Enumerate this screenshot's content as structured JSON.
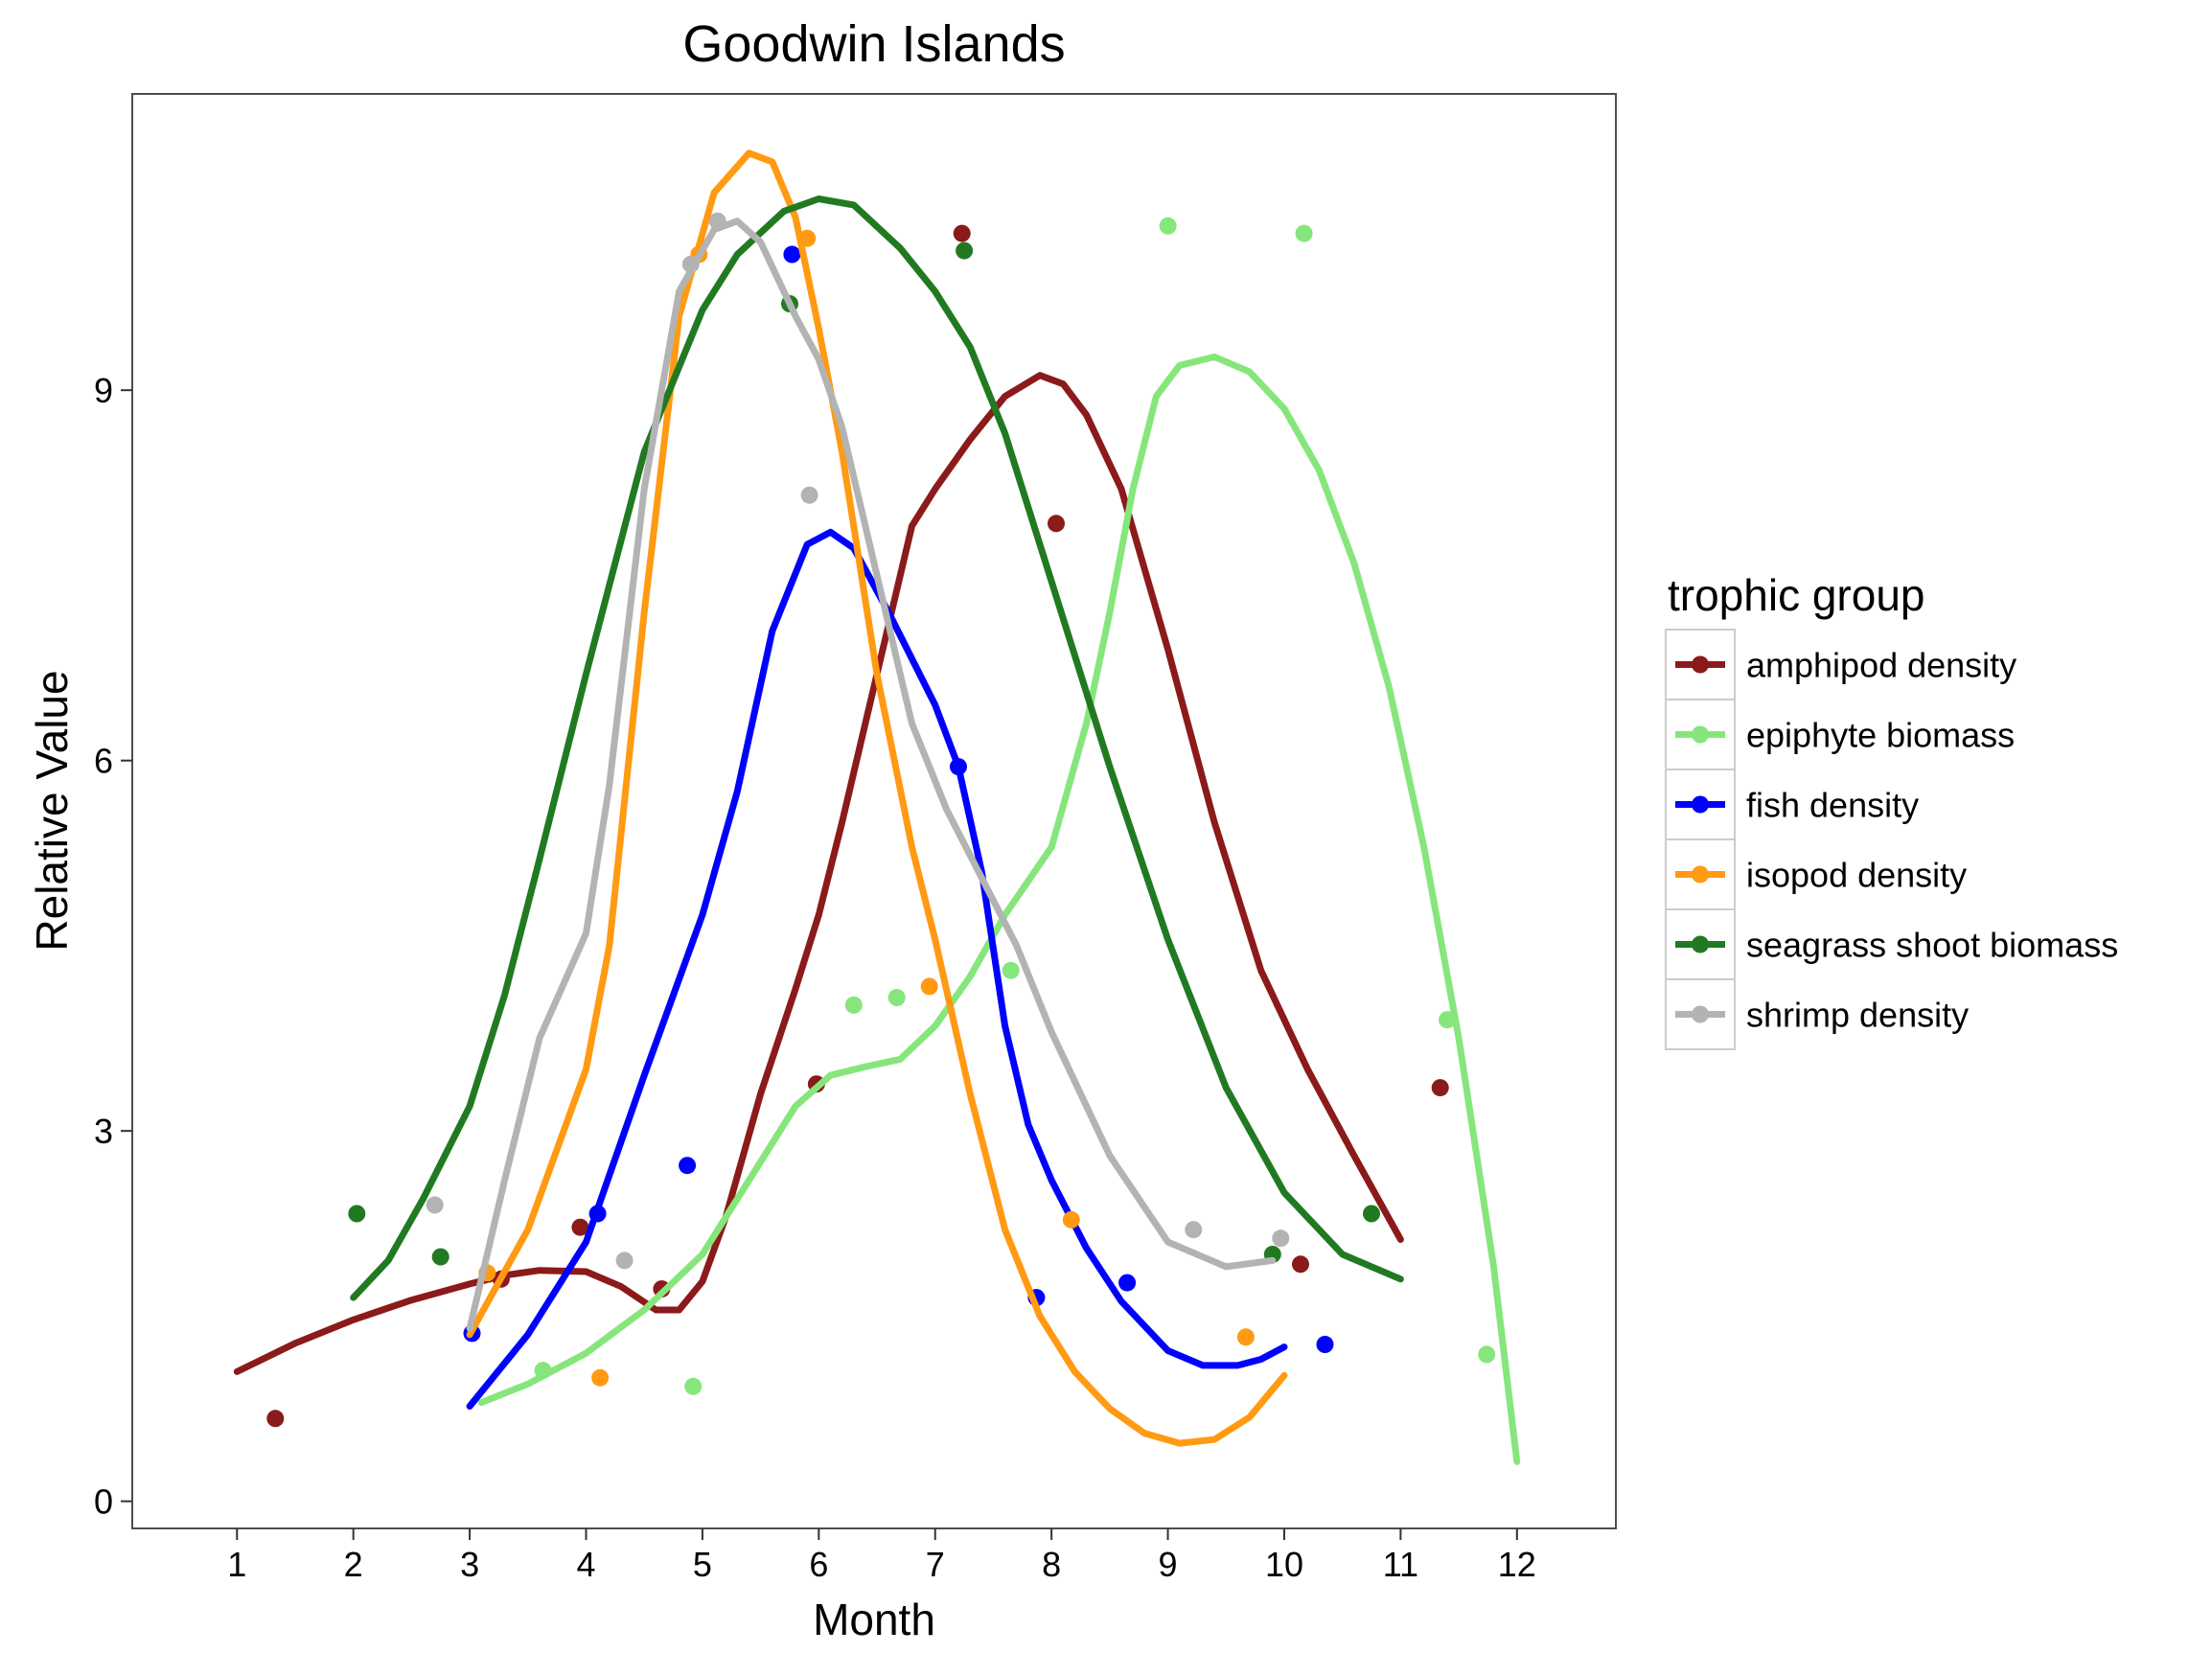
{
  "chart_data": {
    "type": "line",
    "title": "Goodwin Islands",
    "xlabel": "Month",
    "ylabel": "Relative Value",
    "xlim": [
      0.1,
      12.85
    ],
    "ylim": [
      -0.22,
      11.4
    ],
    "xticks": [
      1,
      2,
      3,
      4,
      5,
      6,
      7,
      8,
      9,
      10,
      11,
      12
    ],
    "yticks": [
      0,
      3,
      6,
      9
    ],
    "legend_title": "trophic group",
    "legend_position": "right",
    "grid": false,
    "series": [
      {
        "name": "amphipod density",
        "color": "#8b1a1a",
        "points": [
          [
            1.33,
            0.67
          ],
          [
            3.27,
            1.8
          ],
          [
            3.95,
            2.22
          ],
          [
            4.65,
            1.72
          ],
          [
            5.98,
            3.38
          ],
          [
            7.23,
            10.27
          ],
          [
            8.04,
            7.92
          ],
          [
            10.14,
            1.92
          ],
          [
            11.34,
            3.35
          ]
        ],
        "curve": [
          [
            1.0,
            1.05
          ],
          [
            1.5,
            1.28
          ],
          [
            2.0,
            1.47
          ],
          [
            2.5,
            1.63
          ],
          [
            3.0,
            1.76
          ],
          [
            3.3,
            1.83
          ],
          [
            3.6,
            1.87
          ],
          [
            4.0,
            1.86
          ],
          [
            4.3,
            1.74
          ],
          [
            4.6,
            1.55
          ],
          [
            4.8,
            1.55
          ],
          [
            5.0,
            1.78
          ],
          [
            5.2,
            2.3
          ],
          [
            5.5,
            3.3
          ],
          [
            5.8,
            4.15
          ],
          [
            6.0,
            4.75
          ],
          [
            6.2,
            5.5
          ],
          [
            6.5,
            6.7
          ],
          [
            6.8,
            7.9
          ],
          [
            7.0,
            8.2
          ],
          [
            7.3,
            8.6
          ],
          [
            7.6,
            8.95
          ],
          [
            7.9,
            9.12
          ],
          [
            8.1,
            9.05
          ],
          [
            8.3,
            8.8
          ],
          [
            8.6,
            8.2
          ],
          [
            9.0,
            6.9
          ],
          [
            9.4,
            5.5
          ],
          [
            9.8,
            4.3
          ],
          [
            10.2,
            3.5
          ],
          [
            10.6,
            2.8
          ],
          [
            11.0,
            2.12
          ]
        ]
      },
      {
        "name": "epiphyte biomass",
        "color": "#86e67c",
        "points": [
          [
            3.63,
            1.06
          ],
          [
            4.92,
            0.93
          ],
          [
            6.3,
            4.02
          ],
          [
            6.67,
            4.08
          ],
          [
            7.65,
            4.3
          ],
          [
            9.0,
            10.33
          ],
          [
            10.17,
            10.27
          ],
          [
            11.4,
            3.9
          ],
          [
            11.74,
            1.19
          ]
        ],
        "curve": [
          [
            3.1,
            0.8
          ],
          [
            3.5,
            0.95
          ],
          [
            4.0,
            1.2
          ],
          [
            4.5,
            1.55
          ],
          [
            5.0,
            2.0
          ],
          [
            5.4,
            2.6
          ],
          [
            5.8,
            3.2
          ],
          [
            6.1,
            3.45
          ],
          [
            6.4,
            3.52
          ],
          [
            6.7,
            3.58
          ],
          [
            7.0,
            3.85
          ],
          [
            7.3,
            4.25
          ],
          [
            7.6,
            4.75
          ],
          [
            8.0,
            5.3
          ],
          [
            8.3,
            6.3
          ],
          [
            8.5,
            7.2
          ],
          [
            8.7,
            8.2
          ],
          [
            8.9,
            8.95
          ],
          [
            9.1,
            9.2
          ],
          [
            9.4,
            9.27
          ],
          [
            9.7,
            9.15
          ],
          [
            10.0,
            8.85
          ],
          [
            10.3,
            8.35
          ],
          [
            10.6,
            7.6
          ],
          [
            10.9,
            6.6
          ],
          [
            11.2,
            5.3
          ],
          [
            11.5,
            3.75
          ],
          [
            11.8,
            1.9
          ],
          [
            12.0,
            0.32
          ]
        ]
      },
      {
        "name": "fish density",
        "color": "#0000ff",
        "points": [
          [
            3.02,
            1.36
          ],
          [
            4.1,
            2.33
          ],
          [
            4.87,
            2.72
          ],
          [
            5.77,
            10.1
          ],
          [
            7.2,
            5.95
          ],
          [
            7.87,
            1.65
          ],
          [
            8.65,
            1.77
          ],
          [
            10.35,
            1.27
          ]
        ],
        "curve": [
          [
            3.0,
            0.77
          ],
          [
            3.5,
            1.35
          ],
          [
            4.0,
            2.1
          ],
          [
            4.5,
            3.45
          ],
          [
            5.0,
            4.75
          ],
          [
            5.3,
            5.75
          ],
          [
            5.6,
            7.05
          ],
          [
            5.9,
            7.75
          ],
          [
            6.1,
            7.85
          ],
          [
            6.3,
            7.72
          ],
          [
            6.6,
            7.2
          ],
          [
            7.0,
            6.45
          ],
          [
            7.2,
            5.95
          ],
          [
            7.4,
            5.1
          ],
          [
            7.6,
            3.85
          ],
          [
            7.8,
            3.05
          ],
          [
            8.0,
            2.6
          ],
          [
            8.3,
            2.05
          ],
          [
            8.6,
            1.62
          ],
          [
            9.0,
            1.22
          ],
          [
            9.3,
            1.1
          ],
          [
            9.6,
            1.1
          ],
          [
            9.8,
            1.15
          ],
          [
            10.0,
            1.25
          ]
        ]
      },
      {
        "name": "isopod density",
        "color": "#ff9a12",
        "points": [
          [
            3.15,
            1.85
          ],
          [
            4.12,
            1.0
          ],
          [
            4.97,
            10.1
          ],
          [
            5.9,
            10.23
          ],
          [
            6.95,
            4.17
          ],
          [
            8.17,
            2.28
          ],
          [
            9.67,
            1.33
          ]
        ],
        "curve": [
          [
            3.0,
            1.35
          ],
          [
            3.5,
            2.2
          ],
          [
            4.0,
            3.5
          ],
          [
            4.2,
            4.5
          ],
          [
            4.5,
            7.2
          ],
          [
            4.8,
            9.6
          ],
          [
            5.1,
            10.6
          ],
          [
            5.4,
            10.92
          ],
          [
            5.6,
            10.85
          ],
          [
            5.8,
            10.4
          ],
          [
            6.0,
            9.5
          ],
          [
            6.2,
            8.5
          ],
          [
            6.5,
            6.7
          ],
          [
            6.8,
            5.3
          ],
          [
            7.0,
            4.55
          ],
          [
            7.3,
            3.3
          ],
          [
            7.6,
            2.2
          ],
          [
            7.9,
            1.5
          ],
          [
            8.2,
            1.05
          ],
          [
            8.5,
            0.75
          ],
          [
            8.8,
            0.55
          ],
          [
            9.1,
            0.47
          ],
          [
            9.4,
            0.5
          ],
          [
            9.7,
            0.68
          ],
          [
            10.0,
            1.02
          ]
        ]
      },
      {
        "name": "seagrass shoot biomass",
        "color": "#217a21",
        "points": [
          [
            2.03,
            2.33
          ],
          [
            2.75,
            1.98
          ],
          [
            5.75,
            9.7
          ],
          [
            7.25,
            10.13
          ],
          [
            9.9,
            2.0
          ],
          [
            10.75,
            2.33
          ]
        ],
        "curve": [
          [
            2.0,
            1.65
          ],
          [
            2.3,
            1.95
          ],
          [
            2.6,
            2.45
          ],
          [
            3.0,
            3.2
          ],
          [
            3.3,
            4.1
          ],
          [
            3.6,
            5.2
          ],
          [
            4.0,
            6.7
          ],
          [
            4.5,
            8.5
          ],
          [
            5.0,
            9.65
          ],
          [
            5.3,
            10.1
          ],
          [
            5.7,
            10.45
          ],
          [
            6.0,
            10.55
          ],
          [
            6.3,
            10.5
          ],
          [
            6.7,
            10.15
          ],
          [
            7.0,
            9.8
          ],
          [
            7.3,
            9.35
          ],
          [
            7.6,
            8.65
          ],
          [
            8.0,
            7.45
          ],
          [
            8.5,
            5.95
          ],
          [
            9.0,
            4.55
          ],
          [
            9.5,
            3.35
          ],
          [
            10.0,
            2.5
          ],
          [
            10.5,
            2.0
          ],
          [
            11.0,
            1.8
          ]
        ]
      },
      {
        "name": "shrimp density",
        "color": "#b3b3b3",
        "points": [
          [
            2.7,
            2.4
          ],
          [
            4.33,
            1.95
          ],
          [
            4.9,
            10.02
          ],
          [
            5.13,
            10.37
          ],
          [
            5.92,
            8.15
          ],
          [
            9.22,
            2.2
          ],
          [
            9.97,
            2.13
          ]
        ],
        "curve": [
          [
            3.0,
            1.4
          ],
          [
            3.3,
            2.6
          ],
          [
            3.6,
            3.75
          ],
          [
            4.0,
            4.6
          ],
          [
            4.2,
            5.8
          ],
          [
            4.5,
            8.2
          ],
          [
            4.8,
            9.8
          ],
          [
            5.1,
            10.3
          ],
          [
            5.3,
            10.37
          ],
          [
            5.5,
            10.2
          ],
          [
            5.8,
            9.6
          ],
          [
            6.0,
            9.25
          ],
          [
            6.2,
            8.7
          ],
          [
            6.5,
            7.5
          ],
          [
            6.8,
            6.3
          ],
          [
            7.1,
            5.6
          ],
          [
            7.4,
            5.05
          ],
          [
            7.7,
            4.5
          ],
          [
            8.0,
            3.8
          ],
          [
            8.5,
            2.8
          ],
          [
            9.0,
            2.1
          ],
          [
            9.5,
            1.9
          ],
          [
            9.9,
            1.95
          ]
        ]
      }
    ]
  }
}
